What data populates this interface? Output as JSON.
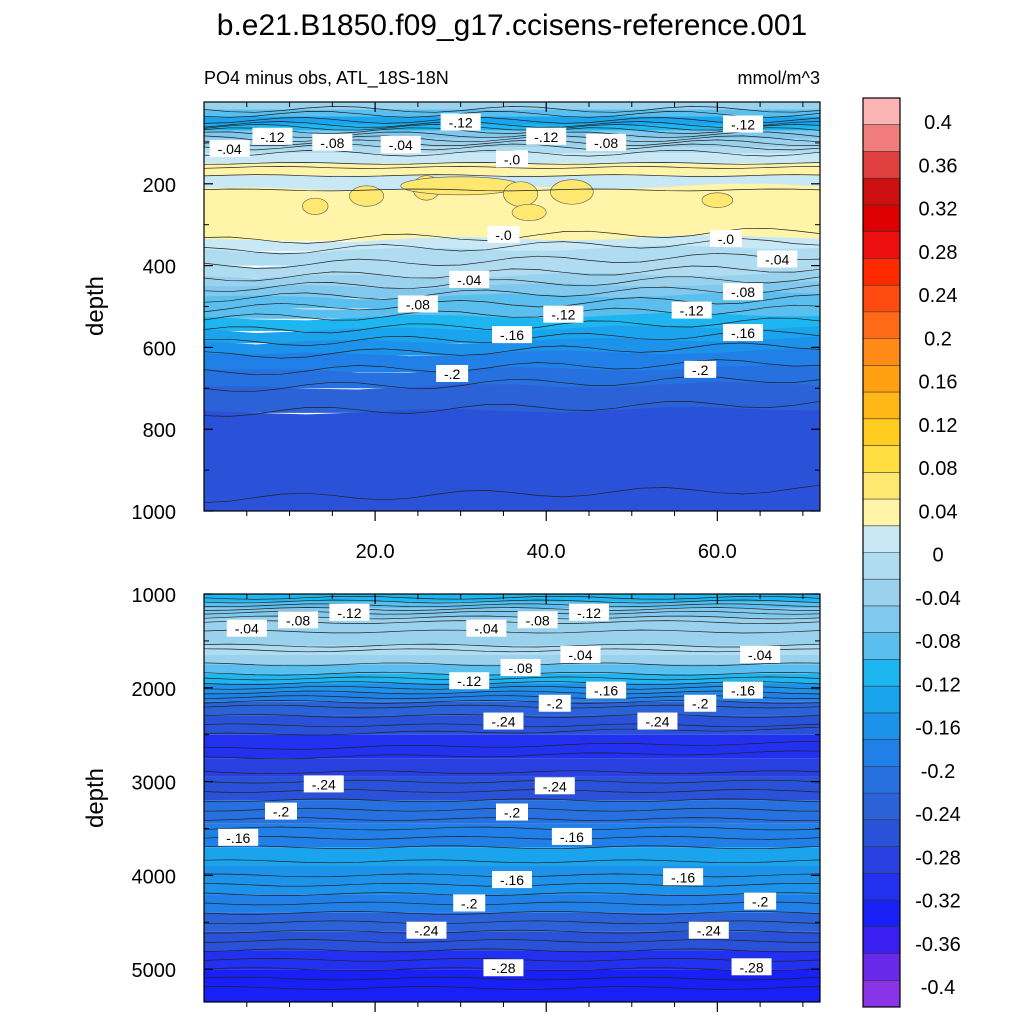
{
  "title": "b.e21.B1850.f09_g17.ccisens-reference.001",
  "subtitle_left": "PO4 minus obs, ATL_18S-18N",
  "subtitle_right": "mmol/m^3",
  "colorbar": {
    "labels": [
      "0.4",
      "0.36",
      "0.32",
      "0.28",
      "0.24",
      "0.2",
      "0.16",
      "0.12",
      "0.08",
      "0.04",
      "0",
      "-0.04",
      "-0.08",
      "-0.12",
      "-0.16",
      "-0.2",
      "-0.24",
      "-0.28",
      "-0.32",
      "-0.36",
      "-0.4"
    ],
    "colors": [
      "#fbb4b4",
      "#f07c7c",
      "#e04040",
      "#cc1010",
      "#dd0000",
      "#ee1010",
      "#ff2a00",
      "#ff4a10",
      "#ff6a18",
      "#ff8a18",
      "#ffa010",
      "#ffb818",
      "#ffcc20",
      "#ffdc40",
      "#ffe870",
      "#fff4a8",
      "#c8e8f6",
      "#b0dcf2",
      "#9ad2ee",
      "#80c8ee",
      "#5abfee",
      "#1eb6f0",
      "#1aa4ee",
      "#1c92ea",
      "#2080e8",
      "#2670e0",
      "#2c62d8",
      "#2a52d8",
      "#2840e0",
      "#2230f0",
      "#1820f6",
      "#3a20f0",
      "#6a28e8",
      "#8a34e8"
    ]
  },
  "chart_data": [
    {
      "type": "heatmap",
      "panel": "upper",
      "xlabel": "",
      "ylabel": "depth",
      "xlim": [
        0,
        72
      ],
      "ylim": [
        1000,
        0
      ],
      "xticks": [
        "20.0",
        "40.0",
        "60.0"
      ],
      "yticks": [
        "200",
        "400",
        "600",
        "800",
        "1000"
      ],
      "contour_labels": [
        {
          "text": "-.12",
          "x": 30,
          "y": 50
        },
        {
          "text": "-.12",
          "x": 8,
          "y": 85
        },
        {
          "text": "-.08",
          "x": 15,
          "y": 100
        },
        {
          "text": "-.04",
          "x": 3,
          "y": 115
        },
        {
          "text": "-.04",
          "x": 23,
          "y": 105
        },
        {
          "text": "-.12",
          "x": 40,
          "y": 85
        },
        {
          "text": "-.08",
          "x": 47,
          "y": 100
        },
        {
          "text": "-.0",
          "x": 36,
          "y": 140
        },
        {
          "text": "-.12",
          "x": 63,
          "y": 55
        },
        {
          "text": "-.0",
          "x": 35,
          "y": 325
        },
        {
          "text": "-.0",
          "x": 61,
          "y": 335
        },
        {
          "text": "-.04",
          "x": 31,
          "y": 435
        },
        {
          "text": "-.04",
          "x": 67,
          "y": 385
        },
        {
          "text": "-.08",
          "x": 25,
          "y": 495
        },
        {
          "text": "-.08",
          "x": 63,
          "y": 465
        },
        {
          "text": "-.12",
          "x": 42,
          "y": 520
        },
        {
          "text": "-.12",
          "x": 57,
          "y": 510
        },
        {
          "text": "-.16",
          "x": 36,
          "y": 570
        },
        {
          "text": "-.16",
          "x": 63,
          "y": 565
        },
        {
          "text": "-.2",
          "x": 29,
          "y": 665
        },
        {
          "text": "-.2",
          "x": 58,
          "y": 655
        }
      ]
    },
    {
      "type": "heatmap",
      "panel": "lower",
      "xlabel": "",
      "ylabel": "depth",
      "xlim": [
        0,
        72
      ],
      "ylim": [
        5350,
        1000
      ],
      "yticks": [
        "1000",
        "2000",
        "3000",
        "4000",
        "5000"
      ],
      "contour_labels": [
        {
          "text": "-.12",
          "x": 17,
          "y": 1200
        },
        {
          "text": "-.08",
          "x": 11,
          "y": 1280
        },
        {
          "text": "-.04",
          "x": 5,
          "y": 1370
        },
        {
          "text": "-.04",
          "x": 33,
          "y": 1370
        },
        {
          "text": "-.08",
          "x": 39,
          "y": 1280
        },
        {
          "text": "-.12",
          "x": 45,
          "y": 1200
        },
        {
          "text": "-.04",
          "x": 44,
          "y": 1650
        },
        {
          "text": "-.08",
          "x": 37,
          "y": 1790
        },
        {
          "text": "-.04",
          "x": 65,
          "y": 1650
        },
        {
          "text": "-.12",
          "x": 31,
          "y": 1930
        },
        {
          "text": "-.16",
          "x": 47,
          "y": 2030
        },
        {
          "text": "-.16",
          "x": 63,
          "y": 2030
        },
        {
          "text": "-.2",
          "x": 41,
          "y": 2170
        },
        {
          "text": "-.2",
          "x": 58,
          "y": 2170
        },
        {
          "text": "-.24",
          "x": 35,
          "y": 2360
        },
        {
          "text": "-.24",
          "x": 53,
          "y": 2360
        },
        {
          "text": "-.24",
          "x": 14,
          "y": 3030
        },
        {
          "text": "-.24",
          "x": 41,
          "y": 3050
        },
        {
          "text": "-.2",
          "x": 9,
          "y": 3320
        },
        {
          "text": "-.2",
          "x": 36,
          "y": 3330
        },
        {
          "text": "-.16",
          "x": 4,
          "y": 3600
        },
        {
          "text": "-.16",
          "x": 43,
          "y": 3590
        },
        {
          "text": "-.16",
          "x": 36,
          "y": 4050
        },
        {
          "text": "-.16",
          "x": 56,
          "y": 4020
        },
        {
          "text": "-.2",
          "x": 31,
          "y": 4300
        },
        {
          "text": "-.2",
          "x": 65,
          "y": 4280
        },
        {
          "text": "-.24",
          "x": 26,
          "y": 4590
        },
        {
          "text": "-.24",
          "x": 59,
          "y": 4590
        },
        {
          "text": "-.28",
          "x": 35,
          "y": 4990
        },
        {
          "text": "-.28",
          "x": 64,
          "y": 4980
        }
      ]
    }
  ]
}
